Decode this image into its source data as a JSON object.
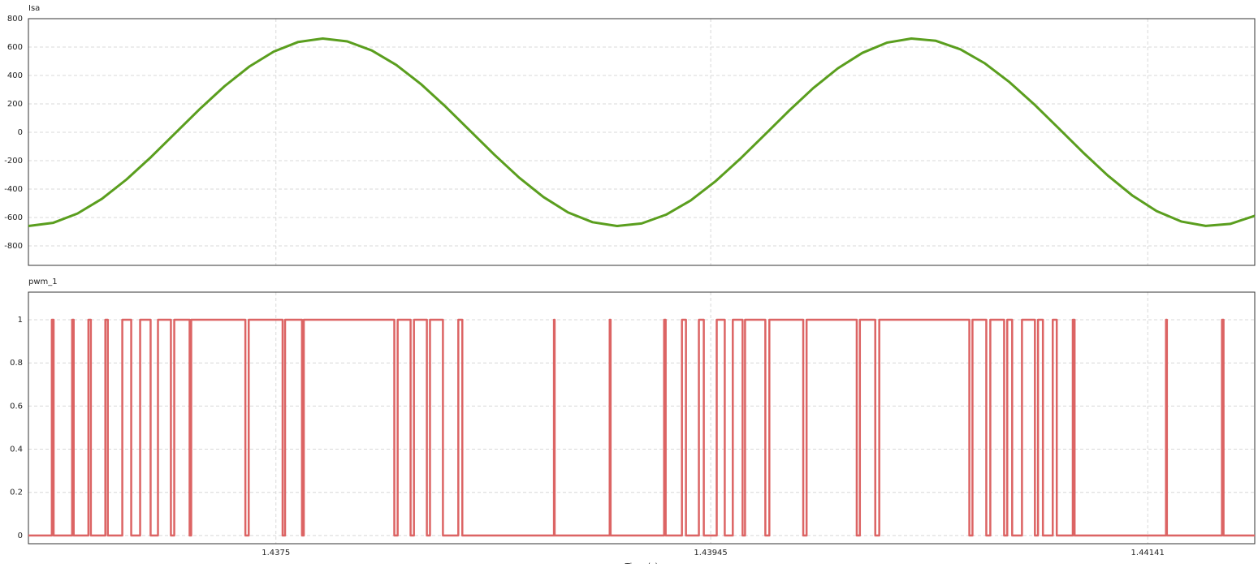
{
  "chart_data": [
    {
      "type": "line",
      "title": "Isa",
      "color": "#5a9e1e",
      "x": [
        1.43639,
        1.4365,
        1.43661,
        1.43672,
        1.43683,
        1.43694,
        1.43705,
        1.43716,
        1.43727,
        1.43738,
        1.43749,
        1.4376,
        1.43771,
        1.43782,
        1.43793,
        1.43804,
        1.43815,
        1.43826,
        1.43837,
        1.43848,
        1.43859,
        1.4387,
        1.43881,
        1.43892,
        1.43903,
        1.43914,
        1.43925,
        1.43936,
        1.43947,
        1.43958,
        1.43969,
        1.4398,
        1.43991,
        1.44002,
        1.44013,
        1.44024,
        1.44035,
        1.44046,
        1.44057,
        1.44068,
        1.44079,
        1.4409,
        1.44101,
        1.44112,
        1.44123,
        1.44134,
        1.44145,
        1.44156,
        1.44167,
        1.44178,
        1.44189
      ],
      "values": [
        -660,
        -638,
        -572,
        -468,
        -332,
        -174,
        -4,
        166,
        325,
        462,
        568,
        636,
        660,
        640,
        576,
        474,
        340,
        182,
        12,
        -158,
        -318,
        -456,
        -564,
        -633,
        -660,
        -642,
        -580,
        -480,
        -347,
        -190,
        -21,
        150,
        311,
        450,
        559,
        631,
        660,
        644,
        584,
        485,
        353,
        198,
        29,
        -142,
        -303,
        -444,
        -555,
        -628,
        -659,
        -645,
        -588
      ],
      "xlim": [
        1.43639,
        1.44189
      ],
      "ylim": [
        -937,
        800
      ],
      "yticks": [
        -800,
        -600,
        -400,
        -200,
        0,
        200,
        400,
        600,
        800
      ],
      "xticks": [
        1.4375,
        1.43945,
        1.44141
      ],
      "xtick_labels": false,
      "grid": true
    },
    {
      "type": "step",
      "title": "pwm_1",
      "color": "#dc6464",
      "xlabel": "Time (s)",
      "x": [
        1.43639,
        1.436495,
        1.436503,
        1.436586,
        1.436593,
        1.436659,
        1.43667,
        1.436735,
        1.436746,
        1.436811,
        1.436851,
        1.436891,
        1.436938,
        1.436971,
        1.437029,
        1.437044,
        1.437113,
        1.43712,
        1.437363,
        1.437378,
        1.43753,
        1.437541,
        1.437617,
        1.437625,
        1.438031,
        1.438046,
        1.438104,
        1.438119,
        1.438177,
        1.438191,
        1.438249,
        1.438318,
        1.438336,
        1.438747,
        1.43875,
        1.438997,
        1.439001,
        1.439241,
        1.439248,
        1.439321,
        1.439339,
        1.439397,
        1.439419,
        1.439477,
        1.439513,
        1.439549,
        1.439593,
        1.439604,
        1.439695,
        1.439713,
        1.439865,
        1.43988,
        1.440105,
        1.440119,
        1.440188,
        1.440206,
        1.44061,
        1.440624,
        1.440686,
        1.440704,
        1.440766,
        1.44078,
        1.440802,
        1.440846,
        1.440904,
        1.440918,
        1.44094,
        1.440984,
        1.441002,
        1.441074,
        1.441082,
        1.441492,
        1.441496,
        1.441743,
        1.44175,
        1.44189
      ],
      "values": [
        0,
        1,
        0,
        1,
        0,
        1,
        0,
        1,
        0,
        1,
        0,
        1,
        0,
        1,
        0,
        1,
        0,
        1,
        0,
        1,
        0,
        1,
        0,
        1,
        0,
        1,
        0,
        1,
        0,
        1,
        0,
        1,
        0,
        1,
        0,
        1,
        0,
        1,
        0,
        1,
        0,
        1,
        0,
        1,
        0,
        1,
        0,
        1,
        0,
        1,
        0,
        1,
        0,
        1,
        0,
        1,
        0,
        1,
        0,
        1,
        0,
        1,
        0,
        1,
        0,
        1,
        0,
        1,
        0,
        1,
        0,
        1,
        0,
        1,
        0,
        0
      ],
      "xlim": [
        1.43639,
        1.44189
      ],
      "ylim": [
        -0.038,
        1.128
      ],
      "yticks": [
        0,
        0.2,
        0.4,
        0.6,
        0.8,
        1
      ],
      "xticks": [
        1.4375,
        1.43945,
        1.44141
      ],
      "xtick_labels": true,
      "grid": true
    }
  ]
}
